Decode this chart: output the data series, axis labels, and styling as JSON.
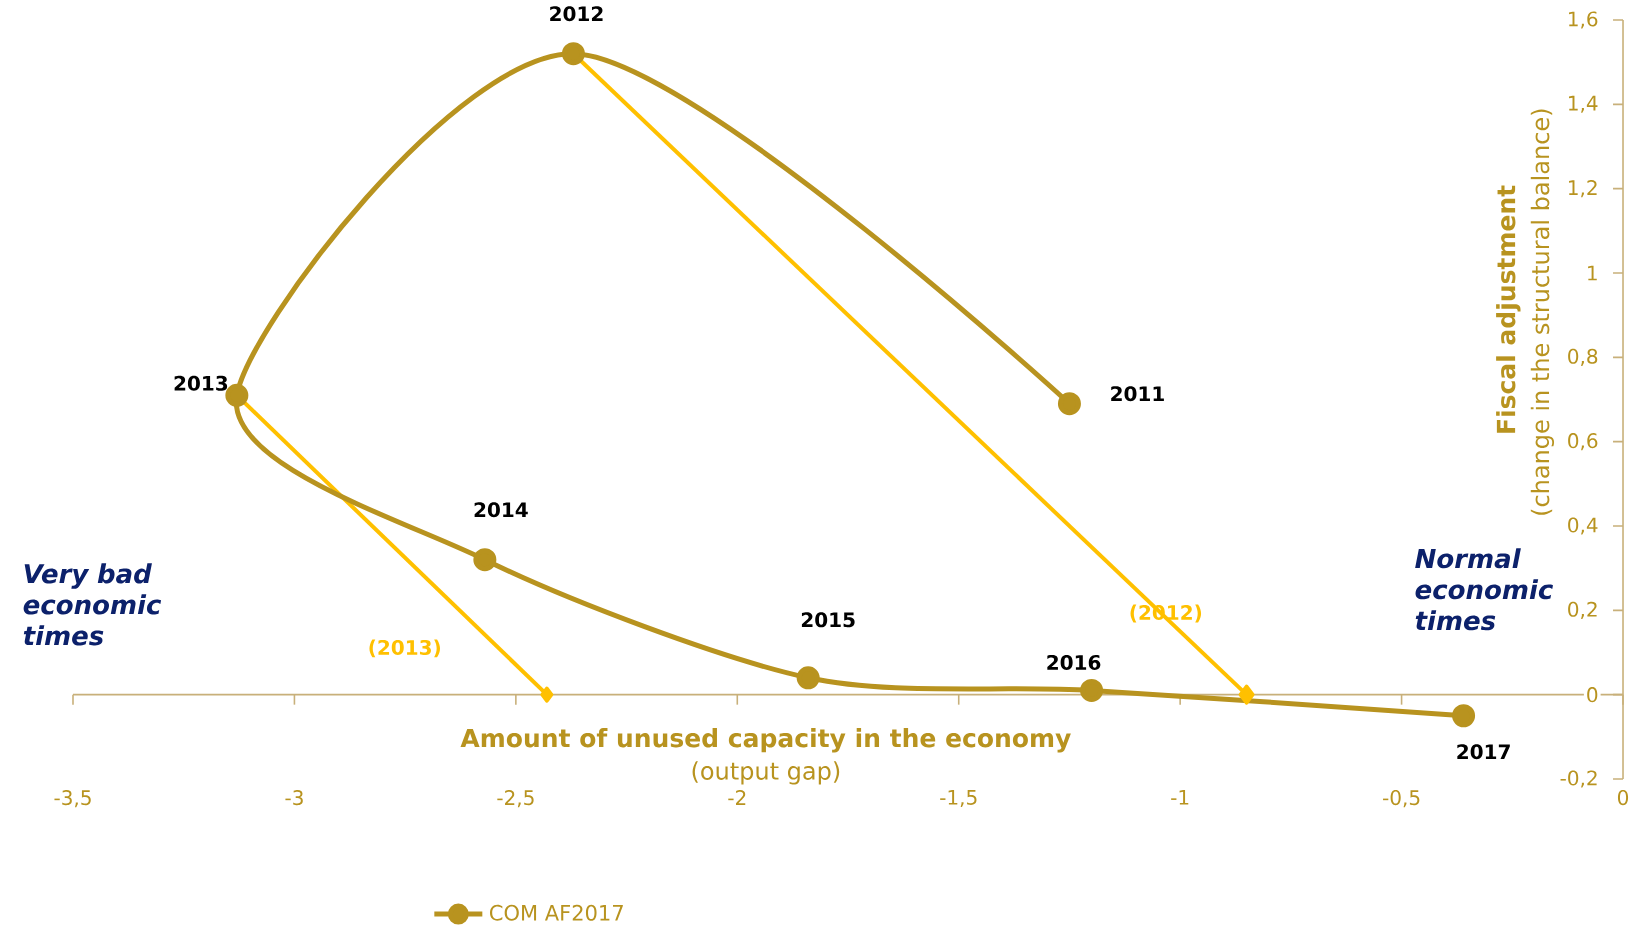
{
  "chart_data": {
    "type": "line",
    "xlabel": "Amount of unused capacity in the economy",
    "ylabel": "Fiscal adjustment",
    "xlim": [
      -3.5,
      0
    ],
    "ylim": [
      -0.2,
      1.6
    ],
    "xticks": [
      {
        "value": -3.5,
        "label": "-3,5"
      },
      -3,
      {
        "value": -2.5,
        "label": "-2,5"
      },
      -2,
      {
        "value": -1.5,
        "label": "-1,5"
      },
      -1,
      {
        "value": -0.5,
        "label": "-0,5"
      },
      0
    ],
    "yticks": [
      {
        "value": -0.2,
        "label": "-0,2"
      },
      0,
      {
        "value": 0.2,
        "label": "0,2"
      },
      {
        "value": 0.4,
        "label": "0,4"
      },
      {
        "value": 0.6,
        "label": "0,6"
      },
      {
        "value": 0.8,
        "label": "0,8"
      },
      1,
      {
        "value": 1.2,
        "label": "1,2"
      },
      {
        "value": 1.4,
        "label": "1,4"
      },
      {
        "value": 1.6,
        "label": "1,6"
      }
    ],
    "series": [
      {
        "name": "COM AF2017",
        "color": "#b8931f",
        "marker": "circle",
        "x": [
          -1.25,
          -2.37,
          -3.13,
          -2.57,
          -1.84,
          -1.2,
          -0.36
        ],
        "values": [
          0.69,
          1.52,
          0.71,
          0.32,
          0.04,
          0.01,
          -0.05
        ]
      },
      {
        "color": "#ffc000",
        "marker": "diamond",
        "x": [
          -2.37,
          -0.85
        ],
        "values": [
          1.52,
          0
        ]
      },
      {
        "color": "#ffc000",
        "marker": "diamond",
        "x": [
          -3.13,
          -2.43
        ],
        "values": [
          0.71,
          0
        ]
      }
    ],
    "ref_lines": [
      {
        "axis": "y",
        "value": 0,
        "color": "#c8b07a"
      }
    ],
    "legend": "bottom",
    "line_style": "solid",
    "annotations": [
      {
        "text": "2011",
        "x": -1.25,
        "y": 0.69
      },
      {
        "text": "2012",
        "x": -2.37,
        "y": 1.52
      },
      {
        "text": "2013",
        "x": -3.13,
        "y": 0.71
      },
      {
        "text": "2014",
        "x": -2.57,
        "y": 0.32
      },
      {
        "text": "2015",
        "x": -1.84,
        "y": 0.04
      },
      {
        "text": "2016",
        "x": -1.2,
        "y": 0.01
      },
      {
        "text": "2017",
        "x": -0.36,
        "y": -0.05
      },
      "(2012)",
      "(2013)",
      "(output gap)",
      "(change in the structural balance)",
      "*Very bad economic times*",
      "*Normal economic times*"
    ]
  }
}
